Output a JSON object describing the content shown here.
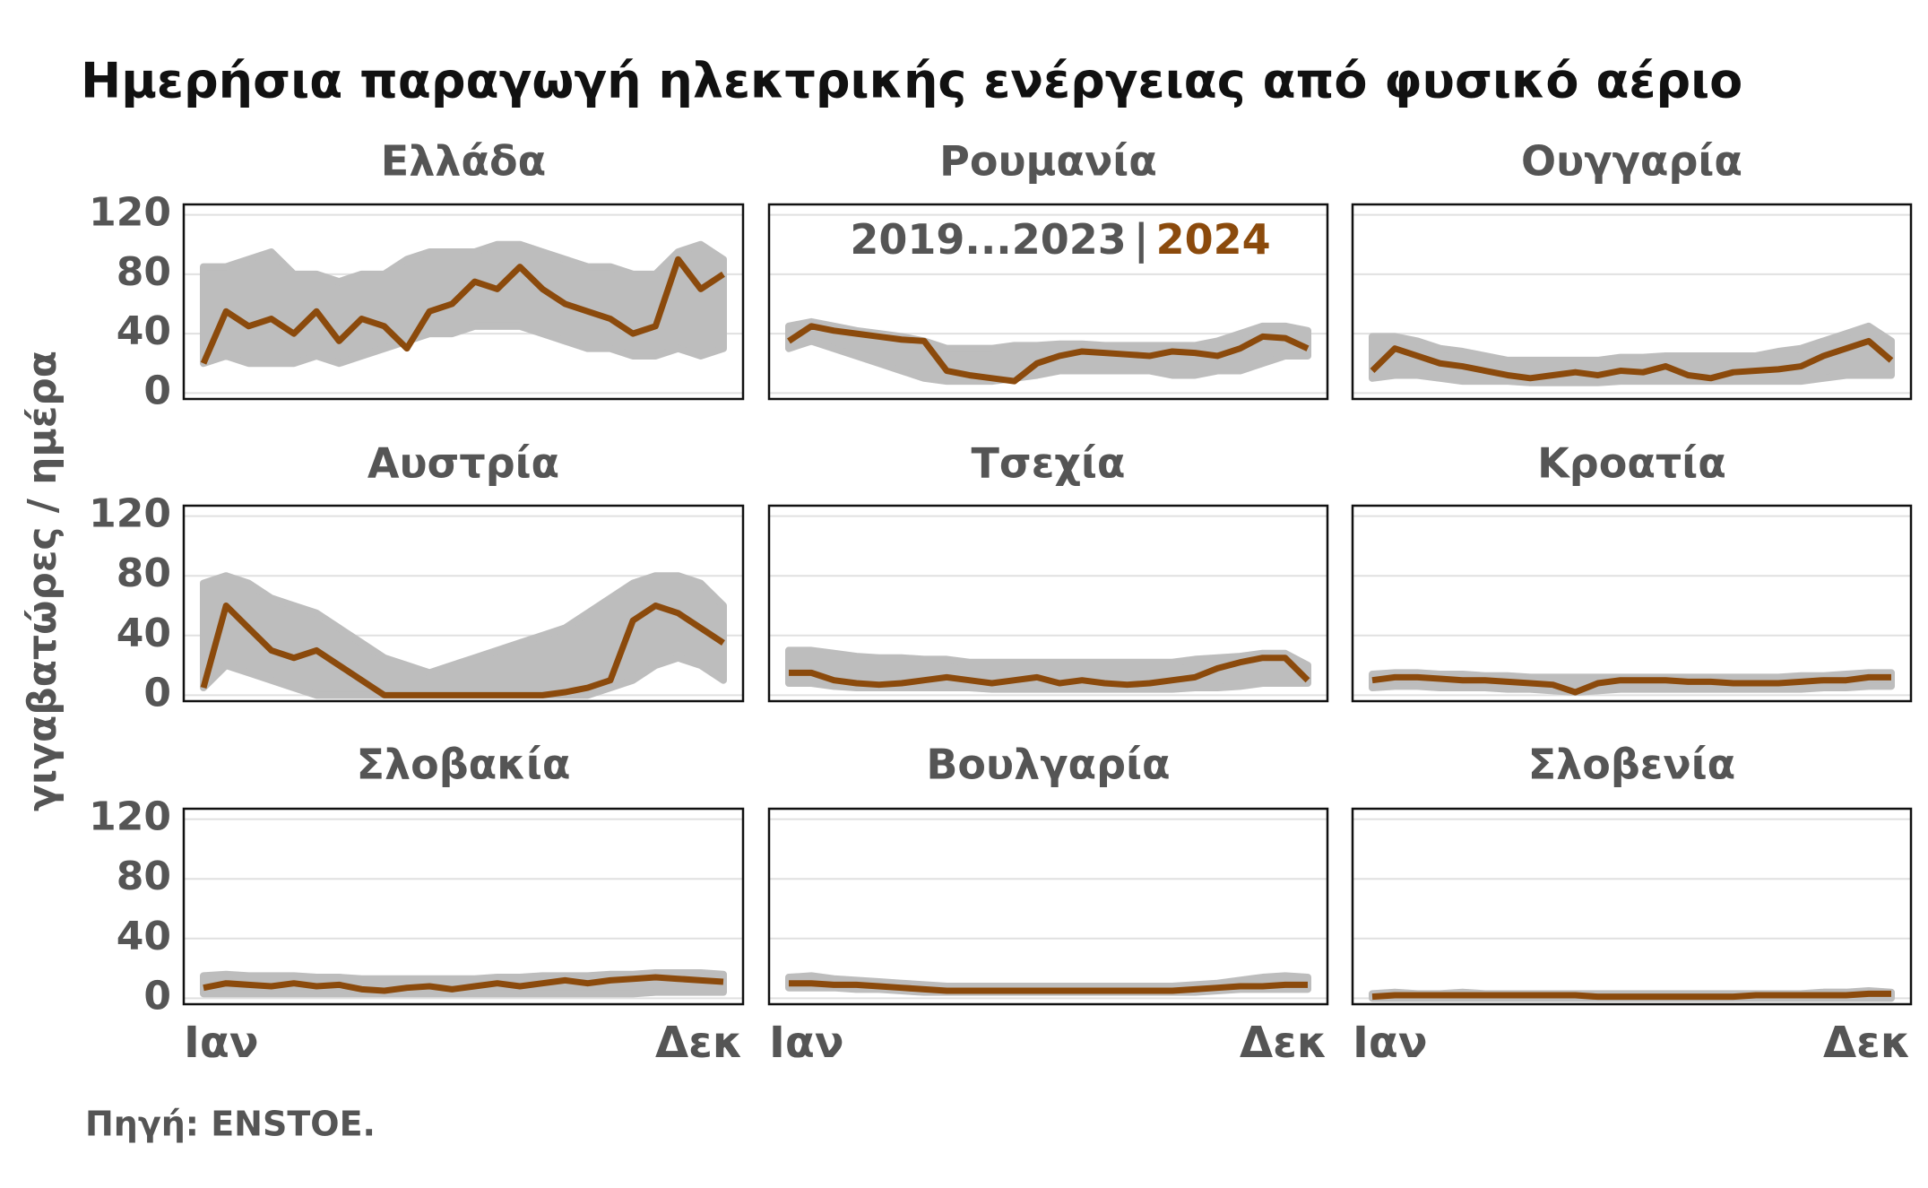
{
  "chart_data": {
    "type": "line",
    "title": "Ημερήσια παραγωγή ηλεκτρικής ενέργειας από φυσικό αέριο",
    "ylabel": "γιγαβατώρες / ημέρα",
    "source": "Πηγή: ENSTOE.",
    "categories": [
      "Ιαν",
      null,
      null,
      null,
      null,
      null,
      null,
      null,
      null,
      null,
      null,
      null,
      null,
      null,
      null,
      null,
      null,
      null,
      null,
      null,
      null,
      null,
      null,
      "Δεκ"
    ],
    "ylim": [
      -4,
      127
    ],
    "yticks": [
      0,
      40,
      80,
      120
    ],
    "grid": true,
    "legend": [
      "2019...2023",
      "2024"
    ],
    "band_color": "#bdbdbd",
    "line_color": "#8b4a0c",
    "panels": [
      {
        "title": "Ελλάδα",
        "low": [
          20,
          25,
          20,
          20,
          20,
          25,
          20,
          25,
          30,
          35,
          40,
          40,
          45,
          45,
          45,
          40,
          35,
          30,
          30,
          25,
          25,
          30,
          25,
          30
        ],
        "high": [
          85,
          85,
          90,
          95,
          80,
          80,
          75,
          80,
          80,
          90,
          95,
          95,
          95,
          100,
          100,
          95,
          90,
          85,
          85,
          80,
          80,
          95,
          100,
          90
        ],
        "values": [
          20,
          55,
          45,
          50,
          40,
          55,
          35,
          50,
          45,
          30,
          55,
          60,
          75,
          70,
          85,
          70,
          60,
          55,
          50,
          40,
          45,
          90,
          70,
          80
        ]
      },
      {
        "title": "Ρουμανία",
        "low": [
          30,
          35,
          30,
          25,
          20,
          15,
          10,
          8,
          8,
          8,
          10,
          12,
          15,
          15,
          15,
          15,
          15,
          12,
          12,
          15,
          15,
          20,
          25,
          25
        ],
        "high": [
          45,
          48,
          45,
          42,
          40,
          38,
          35,
          30,
          30,
          30,
          32,
          32,
          33,
          33,
          32,
          32,
          32,
          32,
          32,
          35,
          40,
          45,
          45,
          42
        ],
        "values": [
          35,
          45,
          42,
          40,
          38,
          36,
          35,
          15,
          12,
          10,
          8,
          20,
          25,
          28,
          27,
          26,
          25,
          28,
          27,
          25,
          30,
          38,
          37,
          30
        ]
      },
      {
        "title": "Ουγγαρία",
        "low": [
          10,
          12,
          12,
          10,
          8,
          8,
          8,
          7,
          7,
          7,
          7,
          8,
          8,
          8,
          8,
          8,
          8,
          8,
          8,
          8,
          10,
          12,
          12,
          12
        ],
        "high": [
          38,
          38,
          35,
          30,
          28,
          25,
          22,
          22,
          22,
          22,
          22,
          24,
          24,
          25,
          25,
          25,
          25,
          25,
          28,
          30,
          35,
          40,
          45,
          35
        ],
        "values": [
          15,
          30,
          25,
          20,
          18,
          15,
          12,
          10,
          12,
          14,
          12,
          15,
          14,
          18,
          12,
          10,
          14,
          15,
          16,
          18,
          25,
          30,
          35,
          22
        ]
      },
      {
        "title": "Αυστρία",
        "low": [
          5,
          20,
          15,
          10,
          5,
          0,
          0,
          0,
          0,
          0,
          0,
          0,
          0,
          0,
          0,
          0,
          0,
          0,
          5,
          10,
          20,
          25,
          20,
          10
        ],
        "high": [
          75,
          80,
          75,
          65,
          60,
          55,
          45,
          35,
          25,
          20,
          15,
          20,
          25,
          30,
          35,
          40,
          45,
          55,
          65,
          75,
          80,
          80,
          75,
          60
        ],
        "values": [
          5,
          60,
          45,
          30,
          25,
          30,
          20,
          10,
          0,
          0,
          0,
          0,
          0,
          0,
          0,
          0,
          2,
          5,
          10,
          50,
          60,
          55,
          45,
          35
        ]
      },
      {
        "title": "Τσεχία",
        "low": [
          8,
          8,
          6,
          5,
          5,
          5,
          5,
          5,
          5,
          4,
          4,
          4,
          4,
          4,
          4,
          4,
          4,
          4,
          5,
          5,
          6,
          8,
          8,
          8
        ],
        "high": [
          30,
          30,
          28,
          26,
          25,
          25,
          24,
          24,
          22,
          22,
          22,
          22,
          22,
          22,
          22,
          22,
          22,
          22,
          24,
          25,
          26,
          28,
          28,
          20
        ],
        "values": [
          15,
          15,
          10,
          8,
          7,
          8,
          10,
          12,
          10,
          8,
          10,
          12,
          8,
          10,
          8,
          7,
          8,
          10,
          12,
          18,
          22,
          25,
          25,
          10
        ]
      },
      {
        "title": "Κροατία",
        "low": [
          5,
          6,
          6,
          5,
          5,
          5,
          4,
          4,
          3,
          2,
          3,
          4,
          4,
          4,
          4,
          4,
          4,
          4,
          4,
          4,
          5,
          5,
          6,
          6
        ],
        "high": [
          14,
          15,
          15,
          14,
          14,
          13,
          13,
          12,
          12,
          12,
          12,
          12,
          12,
          12,
          12,
          12,
          12,
          12,
          12,
          13,
          13,
          14,
          15,
          15
        ],
        "values": [
          10,
          12,
          12,
          11,
          10,
          10,
          9,
          8,
          7,
          2,
          8,
          10,
          10,
          10,
          9,
          9,
          8,
          8,
          8,
          9,
          10,
          10,
          12,
          12
        ]
      },
      {
        "title": "Σλοβακία",
        "low": [
          3,
          3,
          3,
          3,
          3,
          3,
          3,
          3,
          3,
          3,
          3,
          3,
          3,
          3,
          3,
          3,
          3,
          3,
          3,
          3,
          4,
          4,
          4,
          4
        ],
        "high": [
          15,
          16,
          15,
          15,
          15,
          14,
          14,
          13,
          13,
          13,
          13,
          13,
          13,
          14,
          14,
          15,
          15,
          15,
          16,
          16,
          17,
          17,
          17,
          16
        ],
        "values": [
          7,
          10,
          9,
          8,
          10,
          8,
          9,
          6,
          5,
          7,
          8,
          6,
          8,
          10,
          8,
          10,
          12,
          10,
          12,
          13,
          14,
          13,
          12,
          11
        ]
      },
      {
        "title": "Βουλγαρία",
        "low": [
          7,
          7,
          7,
          6,
          6,
          5,
          4,
          4,
          4,
          4,
          4,
          4,
          4,
          4,
          4,
          4,
          4,
          4,
          4,
          5,
          6,
          6,
          6,
          6
        ],
        "high": [
          14,
          15,
          13,
          12,
          11,
          10,
          9,
          8,
          8,
          8,
          8,
          8,
          8,
          8,
          8,
          8,
          8,
          8,
          9,
          10,
          12,
          14,
          15,
          14
        ],
        "values": [
          10,
          10,
          9,
          9,
          8,
          7,
          6,
          5,
          5,
          5,
          5,
          5,
          5,
          5,
          5,
          5,
          5,
          5,
          6,
          7,
          8,
          8,
          9,
          9
        ]
      },
      {
        "title": "Σλοβενία",
        "low": [
          0,
          0,
          0,
          0,
          0,
          0,
          0,
          0,
          0,
          0,
          0,
          0,
          0,
          0,
          0,
          0,
          0,
          0,
          0,
          0,
          0,
          0,
          0,
          0
        ],
        "high": [
          3,
          4,
          3,
          3,
          4,
          3,
          3,
          3,
          3,
          3,
          3,
          3,
          3,
          3,
          3,
          3,
          3,
          3,
          3,
          3,
          4,
          4,
          5,
          4
        ],
        "values": [
          1,
          2,
          2,
          2,
          2,
          2,
          2,
          2,
          2,
          2,
          1,
          1,
          1,
          1,
          1,
          1,
          1,
          2,
          2,
          2,
          2,
          2,
          3,
          3
        ]
      }
    ]
  }
}
